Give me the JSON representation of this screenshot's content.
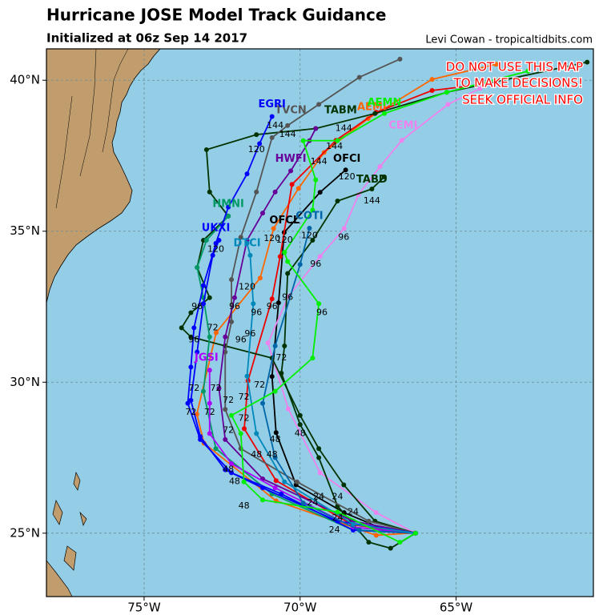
{
  "chart_data": {
    "type": "map",
    "title": "Hurricane JOSE Model Track Guidance",
    "subtitle": "Initialized at 06z Sep 14 2017",
    "credit": "Levi Cowan - tropicaltidbits.com",
    "warning": [
      "DO NOT USE THIS MAP",
      "TO MAKE DECISIONS!",
      "SEEK OFFICIAL INFO"
    ],
    "xlim": [
      -78.13,
      -60.6
    ],
    "ylim": [
      22.9,
      41.04
    ],
    "xticks": [
      {
        "value": -75,
        "label": "75°W"
      },
      {
        "value": -70,
        "label": "70°W"
      },
      {
        "value": -65,
        "label": "65°W"
      }
    ],
    "yticks": [
      {
        "value": 25,
        "label": "25°N"
      },
      {
        "value": 30,
        "label": "30°N"
      },
      {
        "value": 35,
        "label": "35°N"
      },
      {
        "value": 40,
        "label": "40°N"
      }
    ],
    "grid": true,
    "series": [
      {
        "name": "OFCI",
        "color": "#000000",
        "label_at": [
          -68.5,
          37.4
        ],
        "lon": [
          -66.33,
          -67.36,
          -68.59,
          -70.13,
          -70.77,
          -70.9,
          -70.69,
          -70.51,
          -69.36,
          -68.54
        ],
        "lat": [
          25.01,
          25.15,
          25.68,
          26.6,
          28.33,
          30.19,
          32.63,
          34.96,
          36.29,
          37.03
        ]
      },
      {
        "name": "AEMI",
        "color": "#ff6600",
        "label_at": [
          -67.7,
          39.1
        ],
        "lon": [
          -66.33,
          -67.56,
          -70.77,
          -73.08,
          -73.31,
          -72.69,
          -71.28,
          -70.85,
          -70.05,
          -69.23,
          -67.82,
          -65.77,
          -63.72
        ],
        "lat": [
          25.01,
          24.93,
          26.07,
          27.98,
          28.94,
          31.64,
          33.45,
          35.09,
          36.42,
          37.61,
          38.73,
          40.03,
          40.53
        ]
      },
      {
        "name": "OFCL",
        "color": "#ee0000",
        "label_color": "#000000",
        "label_at": [
          -70.5,
          35.35
        ],
        "lon": [
          -66.33,
          -68.33,
          -70.77,
          -71.79,
          -71.67,
          -70.9,
          -70.64,
          -70.26,
          -68.85,
          -67.56,
          -65.77,
          -64.74
        ],
        "lat": [
          25.01,
          25.28,
          26.74,
          28.46,
          30.05,
          32.76,
          34.16,
          36.55,
          38.01,
          38.94,
          39.66,
          39.79
        ]
      },
      {
        "name": "CEMI",
        "color": "#ee82ee",
        "label_at": [
          -66.7,
          38.5
        ],
        "lon": [
          -66.33,
          -67.56,
          -69.36,
          -70.38,
          -71.03,
          -70.38,
          -69.36,
          -68.59,
          -68.13,
          -67.44,
          -66.74,
          -65.26,
          -64.23
        ],
        "lat": [
          25.01,
          25.68,
          27.0,
          29.12,
          31.3,
          32.84,
          34.16,
          35.09,
          36.21,
          37.14,
          38.01,
          39.2,
          39.73
        ]
      },
      {
        "name": "TABD",
        "color": "#003300",
        "label_at": [
          -67.7,
          36.7
        ],
        "lon": [
          -66.3,
          -67.1,
          -67.8,
          -68.8,
          -69.4,
          -70.0,
          -70.6,
          -70.5,
          -70.4,
          -69.6,
          -68.8,
          -67.7,
          -67.3
        ],
        "lat": [
          25.0,
          24.5,
          24.7,
          25.9,
          27.5,
          28.6,
          30.3,
          31.2,
          33.6,
          34.7,
          36.0,
          36.4,
          36.8
        ]
      },
      {
        "name": "TABM",
        "color": "#003300",
        "label_at": [
          -68.7,
          39.0
        ],
        "lon": [
          -66.3,
          -67.6,
          -68.6,
          -69.4,
          -70.0,
          -70.9,
          -72.4,
          -73.5,
          -73.8,
          -73.5,
          -72.9,
          -73.3,
          -73.1,
          -72.3,
          -72.9,
          -73.0,
          -71.4,
          -69.5,
          -67.6,
          -65.3,
          -60.8
        ],
        "lat": [
          25.0,
          25.4,
          26.6,
          27.8,
          28.9,
          30.8,
          31.2,
          31.5,
          31.8,
          32.3,
          32.8,
          33.8,
          34.7,
          35.5,
          36.3,
          37.7,
          38.2,
          38.4,
          38.9,
          39.6,
          40.6
        ]
      },
      {
        "name": "TVCN",
        "color": "#555555",
        "label_at": [
          -70.3,
          39.0
        ],
        "lon": [
          -66.3,
          -67.8,
          -70.1,
          -71.9,
          -72.4,
          -72.4,
          -72.2,
          -72.2,
          -71.9,
          -71.4,
          -70.9,
          -70.4,
          -69.4,
          -68.1,
          -66.8
        ],
        "lat": [
          25.0,
          25.4,
          26.7,
          27.8,
          29.1,
          31.0,
          32.0,
          33.4,
          34.8,
          36.3,
          38.1,
          38.5,
          39.2,
          40.1,
          40.7
        ]
      },
      {
        "name": "HWFI",
        "color": "#660099",
        "label_at": [
          -70.3,
          37.4
        ],
        "lon": [
          -66.3,
          -68.3,
          -71.2,
          -72.4,
          -72.6,
          -72.4,
          -72.1,
          -71.7,
          -71.2,
          -70.8,
          -70.3,
          -69.7,
          -69.5
        ],
        "lat": [
          25.0,
          25.4,
          26.8,
          28.1,
          29.8,
          31.5,
          32.8,
          34.7,
          35.6,
          36.3,
          37.0,
          38.0,
          38.4
        ]
      },
      {
        "name": "HMNI",
        "color": "#009966",
        "label_at": [
          -72.3,
          35.9
        ],
        "lon": [
          -66.3,
          -68.3,
          -70.9,
          -72.7,
          -73.1,
          -72.9,
          -73.1,
          -73.3,
          -73.0,
          -72.3
        ],
        "lat": [
          25.0,
          25.1,
          26.3,
          27.8,
          29.7,
          31.5,
          32.8,
          33.8,
          34.7,
          35.5
        ]
      },
      {
        "name": "EGRI",
        "color": "#0000ff",
        "label_at": [
          -70.9,
          39.2
        ],
        "lon": [
          -66.3,
          -68.3,
          -70.6,
          -72.2,
          -73.2,
          -73.6,
          -73.5,
          -73.4,
          -73.1,
          -72.7,
          -72.3,
          -71.7,
          -71.3,
          -70.9
        ],
        "lat": [
          25.0,
          25.1,
          26.3,
          27.0,
          28.1,
          29.3,
          30.5,
          31.8,
          33.2,
          34.6,
          35.8,
          36.9,
          37.9,
          38.8
        ]
      },
      {
        "name": "UKXI",
        "color": "#0000ff",
        "label_at": [
          -72.7,
          35.1
        ],
        "lon": [
          -66.3,
          -68.8,
          -71.2,
          -72.4,
          -73.2,
          -73.5,
          -73.3,
          -73.1,
          -72.8,
          -72.6
        ],
        "lat": [
          25.0,
          25.4,
          26.5,
          27.1,
          28.2,
          29.4,
          31.0,
          32.6,
          34.2,
          34.7
        ]
      },
      {
        "name": "JGSI",
        "color": "#aa00ff",
        "label_at": [
          -73.0,
          30.8
        ],
        "lon": [
          -66.3,
          -68.3,
          -70.8,
          -72.2,
          -72.9,
          -72.9,
          -72.9
        ],
        "lat": [
          25.0,
          25.2,
          26.5,
          27.3,
          28.3,
          29.3,
          30.4
        ]
      },
      {
        "name": "COTI",
        "color": "#0066aa",
        "label_at": [
          -69.7,
          35.5
        ],
        "lon": [
          -66.3,
          -68.1,
          -69.9,
          -70.8,
          -71.2,
          -70.8,
          -70.0,
          -69.7
        ],
        "lat": [
          25.0,
          25.1,
          26.0,
          27.5,
          29.3,
          31.2,
          33.9,
          35.1
        ]
      },
      {
        "name": "DTCI",
        "color": "#0088bb",
        "label_at": [
          -71.7,
          34.6
        ],
        "lon": [
          -66.3,
          -68.3,
          -70.5,
          -71.4,
          -71.7,
          -71.5,
          -71.6,
          -71.7
        ],
        "lat": [
          25.0,
          25.3,
          26.7,
          28.3,
          30.2,
          32.6,
          34.2,
          34.6
        ]
      },
      {
        "name": "AEMN",
        "color": "#00ee00",
        "label_at": [
          -67.3,
          39.25
        ],
        "lon": [
          -66.3,
          -66.8,
          -68.8,
          -71.2,
          -71.8,
          -71.9,
          -72.2,
          -70.8,
          -69.6,
          -69.4,
          -70.4,
          -70.5,
          -69.6,
          -69.5,
          -69.9,
          -68.8,
          -67.3,
          -65.3,
          -62.7
        ],
        "lat": [
          25.0,
          24.7,
          25.7,
          26.1,
          26.7,
          28.3,
          28.9,
          29.7,
          30.8,
          32.6,
          34.0,
          34.3,
          35.7,
          36.7,
          38.0,
          38.0,
          38.9,
          39.6,
          40.3
        ]
      }
    ],
    "hour_labels": [
      {
        "text": "144",
        "lon": -70.8,
        "lat": 38.5
      },
      {
        "text": "144",
        "lon": -70.4,
        "lat": 38.2
      },
      {
        "text": "120",
        "lon": -71.4,
        "lat": 37.7
      },
      {
        "text": "144",
        "lon": -68.6,
        "lat": 38.4
      },
      {
        "text": "144",
        "lon": -68.9,
        "lat": 37.8
      },
      {
        "text": "144",
        "lon": -69.4,
        "lat": 37.3
      },
      {
        "text": "144",
        "lon": -67.7,
        "lat": 36.0
      },
      {
        "text": "120",
        "lon": -68.5,
        "lat": 36.8
      },
      {
        "text": "96",
        "lon": -68.6,
        "lat": 34.8
      },
      {
        "text": "120",
        "lon": -69.7,
        "lat": 34.85
      },
      {
        "text": "120",
        "lon": -70.5,
        "lat": 34.7
      },
      {
        "text": "120",
        "lon": -70.9,
        "lat": 34.75
      },
      {
        "text": "120",
        "lon": -71.7,
        "lat": 33.15
      },
      {
        "text": "120",
        "lon": -72.7,
        "lat": 34.4
      },
      {
        "text": "96",
        "lon": -69.5,
        "lat": 33.9
      },
      {
        "text": "96",
        "lon": -73.3,
        "lat": 32.5
      },
      {
        "text": "96",
        "lon": -72.1,
        "lat": 32.5
      },
      {
        "text": "96",
        "lon": -70.9,
        "lat": 32.5
      },
      {
        "text": "96",
        "lon": -70.4,
        "lat": 32.8
      },
      {
        "text": "96",
        "lon": -69.3,
        "lat": 32.3
      },
      {
        "text": "96",
        "lon": -71.4,
        "lat": 32.3
      },
      {
        "text": "96",
        "lon": -71.6,
        "lat": 31.6
      },
      {
        "text": "96",
        "lon": -71.9,
        "lat": 31.4
      },
      {
        "text": "96",
        "lon": -73.4,
        "lat": 31.4
      },
      {
        "text": "72",
        "lon": -72.8,
        "lat": 31.8
      },
      {
        "text": "72",
        "lon": -70.6,
        "lat": 30.8
      },
      {
        "text": "72",
        "lon": -71.3,
        "lat": 29.9
      },
      {
        "text": "72",
        "lon": -72.7,
        "lat": 29.8
      },
      {
        "text": "72",
        "lon": -73.4,
        "lat": 29.8
      },
      {
        "text": "72",
        "lon": -72.3,
        "lat": 29.4
      },
      {
        "text": "72",
        "lon": -71.8,
        "lat": 29.5
      },
      {
        "text": "72",
        "lon": -72.9,
        "lat": 29.0
      },
      {
        "text": "72",
        "lon": -73.5,
        "lat": 29.0
      },
      {
        "text": "72",
        "lon": -71.8,
        "lat": 28.8
      },
      {
        "text": "72",
        "lon": -72.3,
        "lat": 28.4
      },
      {
        "text": "48",
        "lon": -70.8,
        "lat": 28.1
      },
      {
        "text": "48",
        "lon": -70.0,
        "lat": 28.3
      },
      {
        "text": "48",
        "lon": -71.4,
        "lat": 27.6
      },
      {
        "text": "48",
        "lon": -70.9,
        "lat": 27.6
      },
      {
        "text": "48",
        "lon": -72.3,
        "lat": 27.1
      },
      {
        "text": "48",
        "lon": -72.1,
        "lat": 26.7
      },
      {
        "text": "48",
        "lon": -71.8,
        "lat": 25.9
      },
      {
        "text": "24",
        "lon": -69.4,
        "lat": 26.2
      },
      {
        "text": "24",
        "lon": -69.6,
        "lat": 26.0
      },
      {
        "text": "24",
        "lon": -68.8,
        "lat": 26.2
      },
      {
        "text": "24",
        "lon": -68.9,
        "lat": 25.1
      },
      {
        "text": "24",
        "lon": -68.8,
        "lat": 25.5
      },
      {
        "text": "24",
        "lon": -68.3,
        "lat": 25.7
      }
    ]
  }
}
